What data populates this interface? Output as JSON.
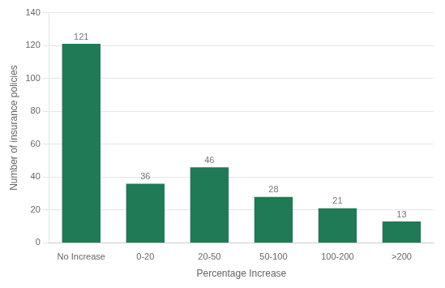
{
  "chart_data": {
    "type": "bar",
    "categories": [
      "No Increase",
      "0-20",
      "20-50",
      "50-100",
      "100-200",
      ">200"
    ],
    "values": [
      121,
      36,
      46,
      28,
      21,
      13
    ],
    "color": "#1f7a55",
    "xlabel": "Percentage Increase",
    "ylabel": "Number of insurance policies",
    "ylim": [
      0,
      140
    ],
    "yticks": [
      0,
      20,
      40,
      60,
      80,
      100,
      120,
      140
    ],
    "grid": true,
    "data_labels": true
  }
}
